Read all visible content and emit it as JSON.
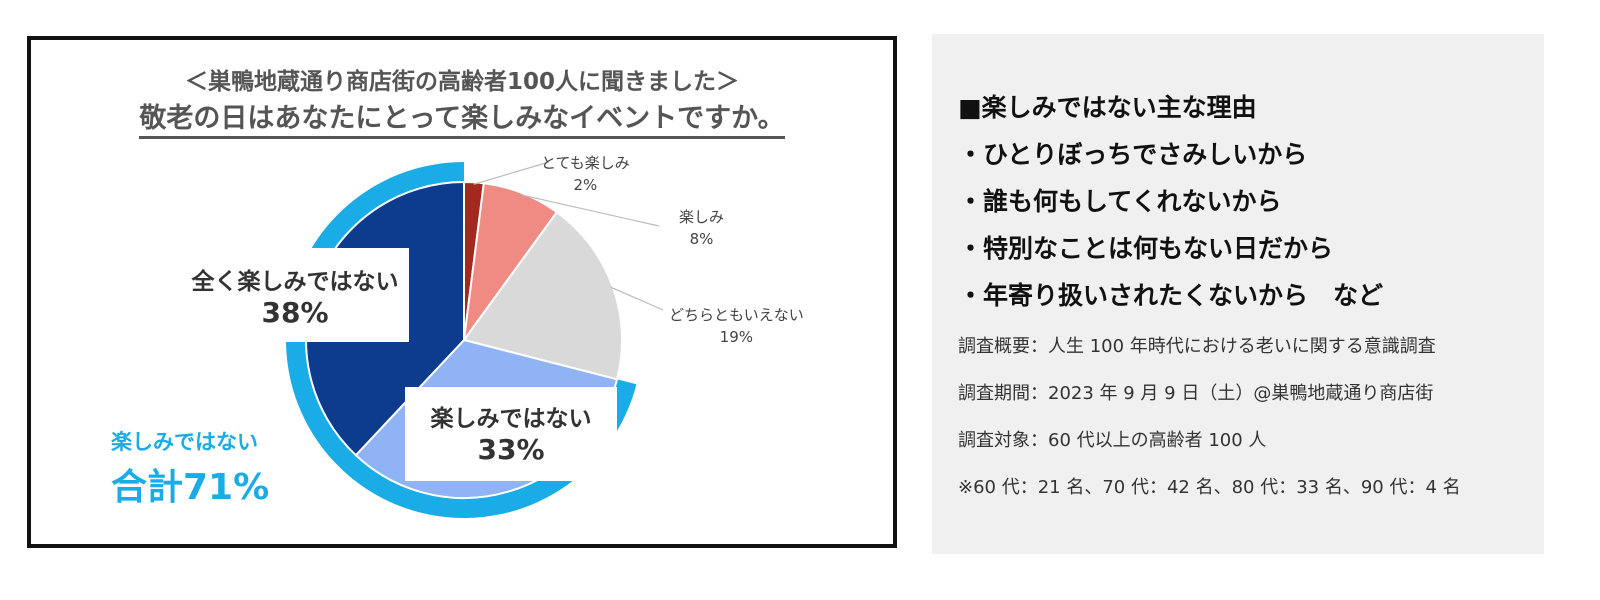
{
  "chart_data": {
    "type": "pie",
    "title": "＜巣鴨地蔵通り商店街の高齢者100人に聞きました＞",
    "subtitle": "敬老の日はあなたにとって楽しみなイベントですか。",
    "slices": [
      {
        "label": "とても楽しみ",
        "value": 2,
        "value_label": "2%",
        "color": "#a3291f"
      },
      {
        "label": "楽しみ",
        "value": 8,
        "value_label": "8%",
        "color": "#f08b84"
      },
      {
        "label": "どちらともいえない",
        "value": 19,
        "value_label": "19%",
        "color": "#d9d9d9"
      },
      {
        "label": "楽しみではない",
        "value": 33,
        "value_label": "33%",
        "color": "#8fb3f5"
      },
      {
        "label": "全く楽しみではない",
        "value": 38,
        "value_label": "38%",
        "color": "#0d3b8e"
      }
    ],
    "group": {
      "label": "楽しみではない",
      "total": "合計71%",
      "value": 71,
      "color": "#1aace6"
    }
  },
  "side": {
    "reasons": [
      "■楽しみではない主な理由",
      "・ひとりぼっちでさみしいから",
      "・誰も何もしてくれないから",
      "・特別なことは何もない日だから",
      "・年寄り扱いされたくないから　など"
    ],
    "notes": [
      "調査概要：人生 100 年時代における老いに関する意識調査",
      "調査期間：2023 年 9 月 9 日（土）@巣鴨地蔵通り商店街",
      "調査対象：60 代以上の高齢者 100 人",
      "※60 代：21 名、70 代：42 名、80 代：33 名、90 代：4 名"
    ]
  }
}
